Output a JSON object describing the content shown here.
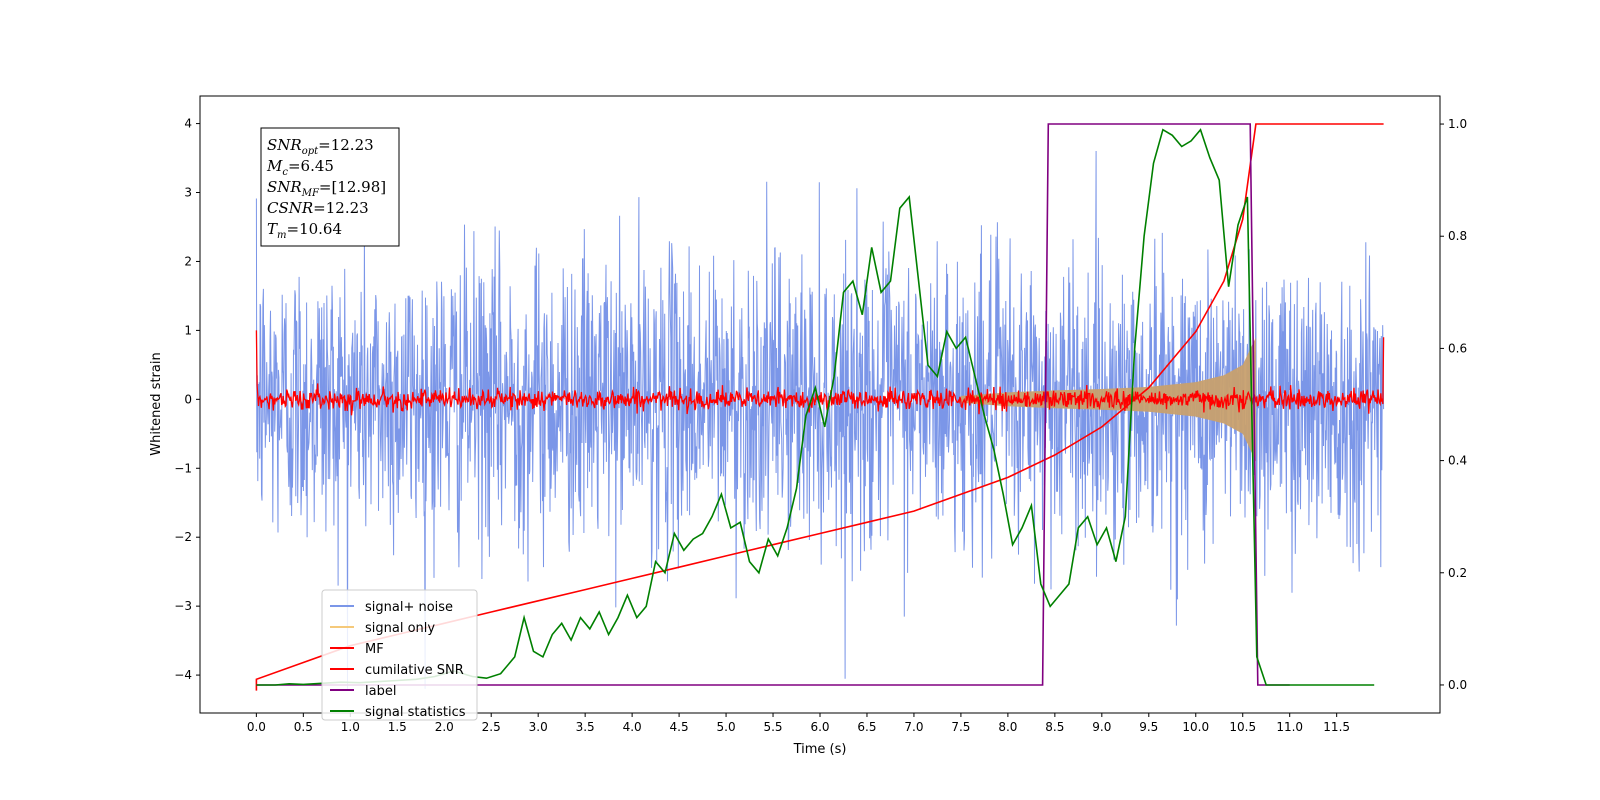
{
  "chart_data": {
    "type": "line",
    "title": "",
    "xlabel": "Time (s)",
    "ylabel": "Whitened strain",
    "xlim": [
      -0.6,
      12.6
    ],
    "ylim": [
      -4.55,
      4.4
    ],
    "y2lim": [
      -0.05,
      1.05
    ],
    "x_ticks": [
      "0.0",
      "0.5",
      "1.0",
      "1.5",
      "2.0",
      "2.5",
      "3.0",
      "3.5",
      "4.0",
      "4.5",
      "5.0",
      "5.5",
      "6.0",
      "6.5",
      "7.0",
      "7.5",
      "8.0",
      "8.5",
      "9.0",
      "9.5",
      "10.0",
      "10.5",
      "11.0",
      "11.5"
    ],
    "y_ticks": [
      "4",
      "3",
      "2",
      "1",
      "0",
      "−1",
      "−2",
      "−3",
      "−4"
    ],
    "y2_ticks": [
      "1.0",
      "0.8",
      "0.6",
      "0.4",
      "0.2",
      "0.0"
    ],
    "grid": false,
    "legend_position": "lower-left",
    "annotation": {
      "lines": [
        {
          "base": "SNR",
          "sub": "opt",
          "value": "=12.23"
        },
        {
          "base": "M",
          "sub": "c",
          "value": "=6.45"
        },
        {
          "base": "SNR",
          "sub": "MF",
          "value": "=[12.98]"
        },
        {
          "base": "CSNR",
          "sub": "",
          "value": "=12.23"
        },
        {
          "base": "T",
          "sub": "m",
          "value": "=10.64"
        }
      ]
    },
    "series": [
      {
        "name": "signal+ noise",
        "color": "#7b96e8",
        "axis": "left",
        "description_range": [
          -4.2,
          4.0
        ],
        "x_range": [
          0.0,
          12.0
        ]
      },
      {
        "name": "signal only",
        "color": "#f5c97a",
        "axis": "left",
        "envelope": {
          "x": [
            7.5,
            8.0,
            8.5,
            9.0,
            9.5,
            10.0,
            10.3,
            10.5,
            10.64
          ],
          "amp": [
            0.05,
            0.1,
            0.13,
            0.15,
            0.18,
            0.25,
            0.35,
            0.5,
            0.9
          ]
        }
      },
      {
        "name": "MF",
        "color": "#ff0000",
        "axis": "left",
        "noise_amp": 0.12,
        "x_range": [
          0.0,
          12.0
        ]
      },
      {
        "name": "cumilative SNR",
        "color": "#ff0000",
        "axis": "right",
        "x": [
          0.0,
          0.5,
          1.0,
          1.5,
          2.0,
          2.5,
          3.0,
          3.5,
          4.0,
          4.5,
          5.0,
          5.5,
          6.0,
          6.5,
          7.0,
          7.5,
          8.0,
          8.5,
          9.0,
          9.5,
          10.0,
          10.3,
          10.5,
          10.64,
          12.0
        ],
        "values": [
          0.01,
          0.04,
          0.07,
          0.09,
          0.11,
          0.13,
          0.15,
          0.17,
          0.19,
          0.21,
          0.23,
          0.25,
          0.27,
          0.29,
          0.31,
          0.34,
          0.37,
          0.41,
          0.46,
          0.53,
          0.63,
          0.72,
          0.83,
          1.0,
          1.0
        ]
      },
      {
        "name": "label",
        "color": "#800080",
        "axis": "right",
        "x": [
          0.0,
          8.37,
          8.43,
          10.58,
          10.66,
          11.0
        ],
        "values": [
          0.0,
          0.0,
          1.0,
          1.0,
          0.0,
          0.0
        ]
      },
      {
        "name": "signal statistics",
        "color": "#008000",
        "axis": "right",
        "x": [
          0.0,
          0.2,
          0.35,
          0.5,
          0.7,
          0.9,
          1.1,
          1.3,
          1.5,
          1.7,
          1.9,
          2.1,
          2.3,
          2.45,
          2.6,
          2.75,
          2.85,
          2.95,
          3.05,
          3.15,
          3.25,
          3.35,
          3.45,
          3.55,
          3.65,
          3.75,
          3.85,
          3.95,
          4.05,
          4.15,
          4.25,
          4.35,
          4.45,
          4.55,
          4.65,
          4.75,
          4.85,
          4.95,
          5.05,
          5.15,
          5.25,
          5.35,
          5.45,
          5.55,
          5.65,
          5.75,
          5.85,
          5.95,
          6.05,
          6.15,
          6.25,
          6.35,
          6.45,
          6.55,
          6.65,
          6.75,
          6.85,
          6.95,
          7.05,
          7.15,
          7.25,
          7.35,
          7.45,
          7.55,
          7.65,
          7.75,
          7.85,
          7.95,
          8.05,
          8.15,
          8.25,
          8.35,
          8.45,
          8.55,
          8.65,
          8.75,
          8.85,
          8.95,
          9.05,
          9.15,
          9.25,
          9.35,
          9.45,
          9.55,
          9.65,
          9.75,
          9.85,
          9.95,
          10.05,
          10.15,
          10.25,
          10.35,
          10.45,
          10.55,
          10.65,
          10.75,
          11.0,
          11.5,
          11.9
        ],
        "values": [
          0.0,
          0.0,
          0.002,
          0.001,
          0.003,
          0.005,
          0.004,
          0.006,
          0.008,
          0.01,
          0.015,
          0.025,
          0.015,
          0.012,
          0.02,
          0.05,
          0.12,
          0.06,
          0.05,
          0.09,
          0.11,
          0.08,
          0.12,
          0.1,
          0.13,
          0.09,
          0.12,
          0.16,
          0.12,
          0.14,
          0.22,
          0.2,
          0.27,
          0.24,
          0.26,
          0.27,
          0.3,
          0.34,
          0.28,
          0.29,
          0.22,
          0.2,
          0.26,
          0.23,
          0.28,
          0.35,
          0.48,
          0.53,
          0.46,
          0.55,
          0.7,
          0.72,
          0.66,
          0.78,
          0.7,
          0.72,
          0.85,
          0.87,
          0.72,
          0.57,
          0.55,
          0.63,
          0.6,
          0.62,
          0.55,
          0.48,
          0.42,
          0.34,
          0.25,
          0.28,
          0.32,
          0.18,
          0.14,
          0.16,
          0.18,
          0.28,
          0.3,
          0.25,
          0.28,
          0.22,
          0.3,
          0.6,
          0.8,
          0.93,
          0.99,
          0.98,
          0.96,
          0.97,
          0.99,
          0.94,
          0.9,
          0.71,
          0.82,
          0.87,
          0.05,
          0.0,
          0.0,
          0.0,
          0.0
        ]
      }
    ]
  }
}
